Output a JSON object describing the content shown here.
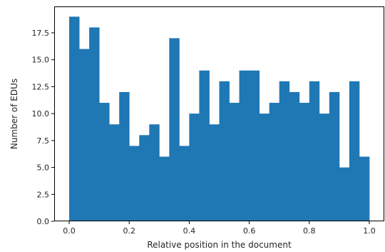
{
  "chart_data": {
    "type": "bar",
    "title": "",
    "xlabel": "Relative position in the document",
    "ylabel": "Number of EDUs",
    "bar_color": "#1f77b4",
    "bin_range": [
      0,
      1
    ],
    "values": [
      19,
      16,
      18,
      11,
      9,
      12,
      7,
      8,
      9,
      6,
      17,
      7,
      10,
      14,
      9,
      13,
      11,
      14,
      14,
      10,
      11,
      13,
      12,
      11,
      13,
      10,
      12,
      5,
      13,
      6
    ],
    "xlim": [
      -0.05,
      1.05
    ],
    "ylim": [
      0,
      19.95
    ],
    "xticks": [
      "0.0",
      "0.2",
      "0.4",
      "0.6",
      "0.8",
      "1.0"
    ],
    "yticks": [
      "0.0",
      "2.5",
      "5.0",
      "7.5",
      "10.0",
      "12.5",
      "15.0",
      "17.5"
    ],
    "grid": false,
    "legend": "none"
  }
}
